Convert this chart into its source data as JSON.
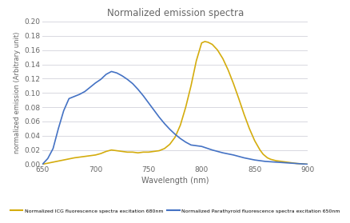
{
  "title": "Normalized emission spectra",
  "xlabel": "Wavelength (nm)",
  "ylabel": "normalized emission (Arbitrary unit)",
  "xlim": [
    650,
    900
  ],
  "ylim": [
    0,
    0.2
  ],
  "yticks": [
    0,
    0.02,
    0.04,
    0.06,
    0.08,
    0.1,
    0.12,
    0.14,
    0.16,
    0.18,
    0.2
  ],
  "xticks": [
    650,
    700,
    750,
    800,
    850,
    900
  ],
  "legend_icg": "Normalized ICG fluorescence spectra excitation 680nm",
  "legend_para": "Normalized Parathyroid fluorescence spectra excitation 650nm",
  "icg_color": "#D4AC0D",
  "para_color": "#4472C4",
  "background_color": "#FFFFFF",
  "grid_color": "#D8D8E0",
  "text_color": "#666666",
  "icg_x": [
    650,
    660,
    670,
    680,
    690,
    700,
    705,
    710,
    715,
    720,
    725,
    730,
    735,
    740,
    745,
    750,
    755,
    760,
    765,
    770,
    775,
    780,
    785,
    790,
    795,
    800,
    803,
    806,
    810,
    815,
    820,
    825,
    830,
    835,
    840,
    845,
    850,
    855,
    858,
    862,
    865,
    870,
    875,
    880,
    885,
    890,
    895,
    900
  ],
  "icg_y": [
    0.0,
    0.003,
    0.006,
    0.009,
    0.011,
    0.013,
    0.015,
    0.018,
    0.02,
    0.019,
    0.018,
    0.017,
    0.017,
    0.016,
    0.017,
    0.017,
    0.018,
    0.019,
    0.022,
    0.028,
    0.038,
    0.055,
    0.08,
    0.11,
    0.145,
    0.17,
    0.172,
    0.171,
    0.168,
    0.16,
    0.148,
    0.132,
    0.113,
    0.092,
    0.07,
    0.05,
    0.033,
    0.02,
    0.014,
    0.009,
    0.007,
    0.005,
    0.004,
    0.003,
    0.002,
    0.001,
    0.0005,
    0.0
  ],
  "para_x": [
    650,
    655,
    660,
    665,
    670,
    675,
    680,
    685,
    690,
    695,
    700,
    705,
    710,
    715,
    720,
    725,
    730,
    735,
    740,
    745,
    750,
    755,
    760,
    765,
    770,
    775,
    780,
    785,
    790,
    795,
    800,
    810,
    820,
    830,
    840,
    850,
    860,
    870,
    880,
    890,
    900
  ],
  "para_y": [
    0.0,
    0.008,
    0.022,
    0.05,
    0.075,
    0.092,
    0.095,
    0.098,
    0.102,
    0.108,
    0.114,
    0.119,
    0.126,
    0.13,
    0.128,
    0.124,
    0.119,
    0.113,
    0.105,
    0.096,
    0.086,
    0.076,
    0.066,
    0.057,
    0.049,
    0.042,
    0.036,
    0.031,
    0.027,
    0.026,
    0.025,
    0.02,
    0.016,
    0.013,
    0.009,
    0.006,
    0.004,
    0.003,
    0.002,
    0.001,
    0.0
  ]
}
